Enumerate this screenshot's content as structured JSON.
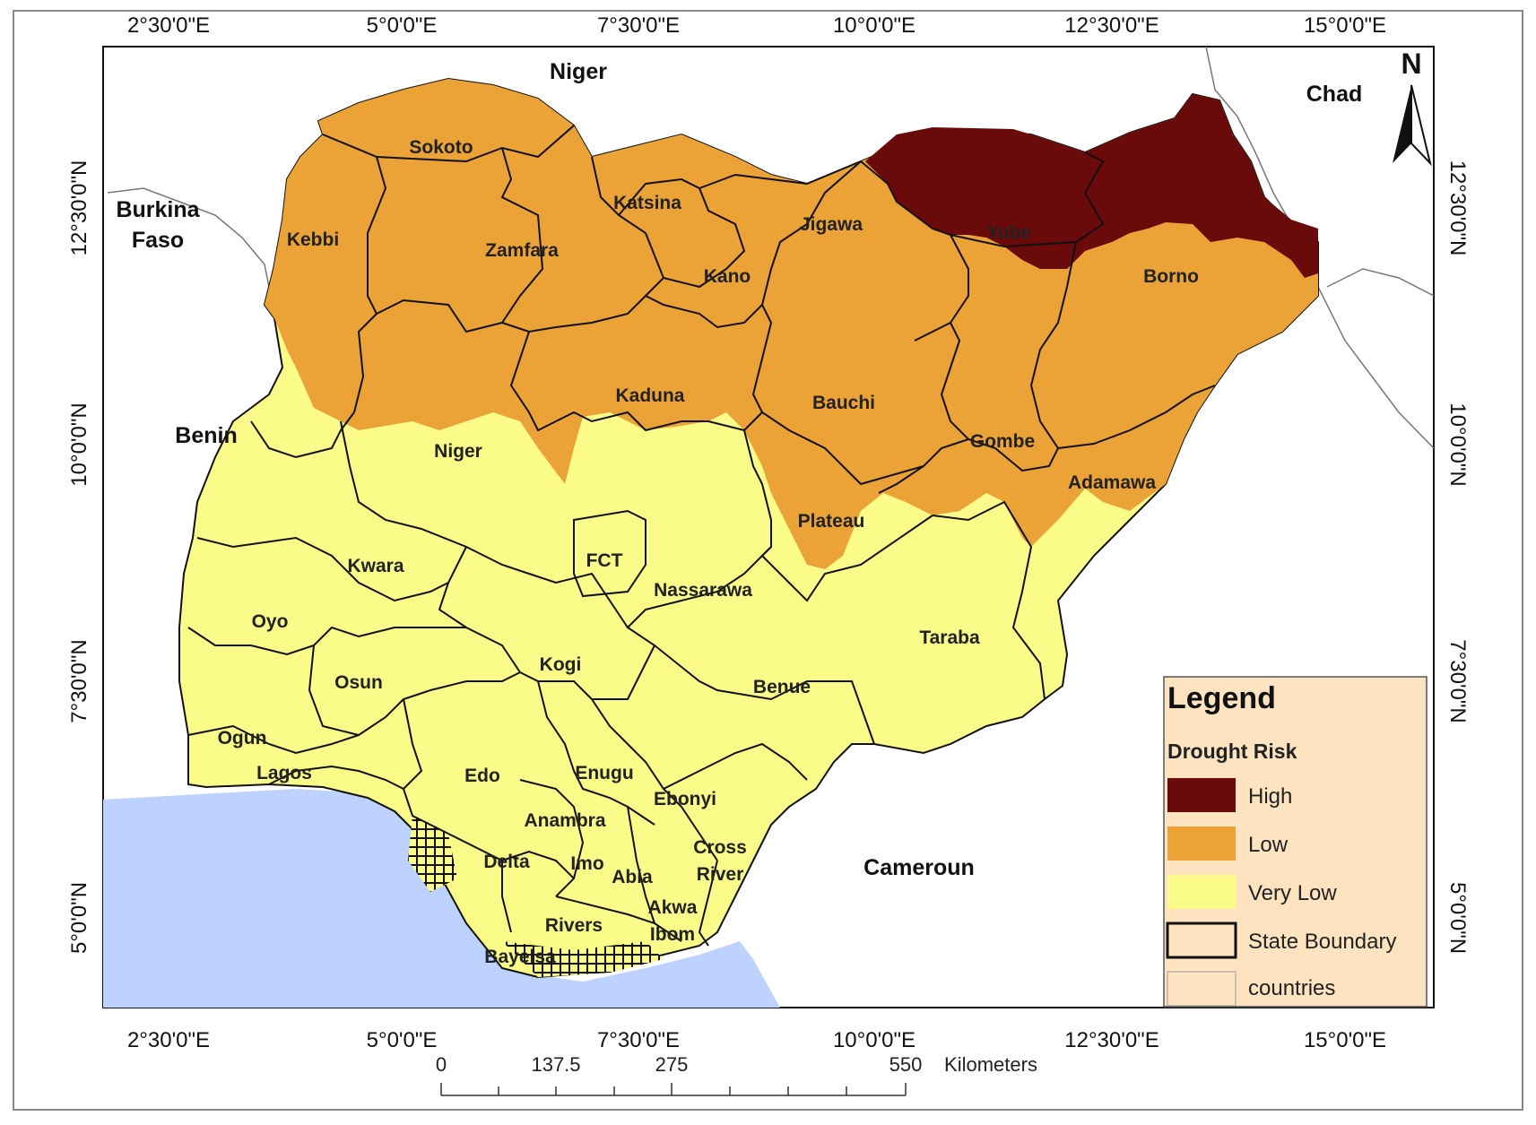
{
  "map": {
    "lon_labels": [
      "2°30'0\"E",
      "5°0'0\"E",
      "7°30'0\"E",
      "10°0'0\"E",
      "12°30'0\"E",
      "15°0'0\"E"
    ],
    "lat_labels": [
      "12°30'0\"N",
      "10°0'0\"N",
      "7°30'0\"N",
      "5°0'0\"N"
    ],
    "north_arrow": "N",
    "countries": [
      "Niger",
      "Chad",
      "Burkina",
      "Faso",
      "Benin",
      "Cameroun"
    ],
    "states": [
      "Sokoto",
      "Katsina",
      "Kebbi",
      "Zamfara",
      "Jigawa",
      "Yobe",
      "Kano",
      "Borno",
      "Kaduna",
      "Bauchi",
      "Niger",
      "Gombe",
      "Adamawa",
      "Plateau",
      "FCT",
      "Kwara",
      "Nassarawa",
      "Oyo",
      "Taraba",
      "Kogi",
      "Osun",
      "Benue",
      "Ogun",
      "Lagos",
      "Edo",
      "Enugu",
      "Ebonyi",
      "Anambra",
      "Cross",
      "River",
      "Delta",
      "Imo",
      "Abia",
      "Akwa",
      "Ibom",
      "Rivers",
      "Bayelsa"
    ],
    "colors": {
      "high": "#6b0a0a",
      "low": "#eba237",
      "very_low": "#fbfb8a",
      "water": "#bed2ff",
      "legend_bg": "#fde3c0"
    }
  },
  "legend": {
    "title": "Legend",
    "subtitle": "Drought Risk",
    "items": [
      {
        "label": "High",
        "color": "#6b0a0a"
      },
      {
        "label": "Low",
        "color": "#eba237"
      },
      {
        "label": "Very Low",
        "color": "#fbfb8a"
      },
      {
        "label": "State Boundary",
        "color": "#fde3c0"
      },
      {
        "label": "countries",
        "color": "#fde3c0"
      }
    ]
  },
  "scale_bar": {
    "ticks": [
      "0",
      "137.5",
      "275",
      "550"
    ],
    "unit": "Kilometers"
  }
}
